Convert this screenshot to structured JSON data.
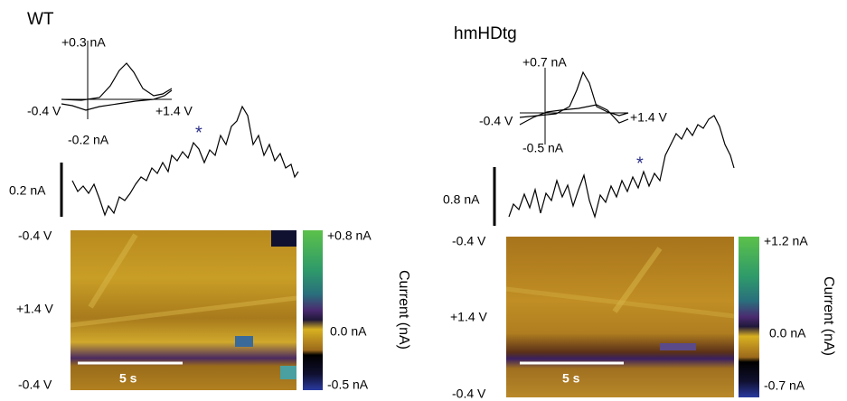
{
  "panels": [
    {
      "title": "WT",
      "cv": {
        "y_top": "+0.3 nA",
        "y_bottom": "-0.2 nA",
        "x_left": "-0.4 V",
        "x_right": "+1.4 V"
      },
      "scale_bar": "0.2 nA",
      "marker": "*",
      "plot": {
        "y_labels": [
          "-0.4 V",
          "+1.4 V",
          "-0.4 V"
        ],
        "time_bar": "5 s",
        "colorbar": [
          "+0.8 nA",
          "0.0 nA",
          "-0.5 nA"
        ],
        "colorbar_title": "Current (nA)"
      }
    },
    {
      "title": "hmHDtg",
      "cv": {
        "y_top": "+0.7 nA",
        "y_bottom": "-0.5 nA",
        "x_left": "-0.4 V",
        "x_right": "+1.4 V"
      },
      "scale_bar": "0.8 nA",
      "marker": "*",
      "plot": {
        "y_labels": [
          "-0.4 V",
          "+1.4 V",
          "-0.4 V"
        ],
        "time_bar": "5 s",
        "colorbar": [
          "+1.2 nA",
          "0.0 nA",
          "-0.7 nA"
        ],
        "colorbar_title": "Current (nA)"
      }
    }
  ]
}
